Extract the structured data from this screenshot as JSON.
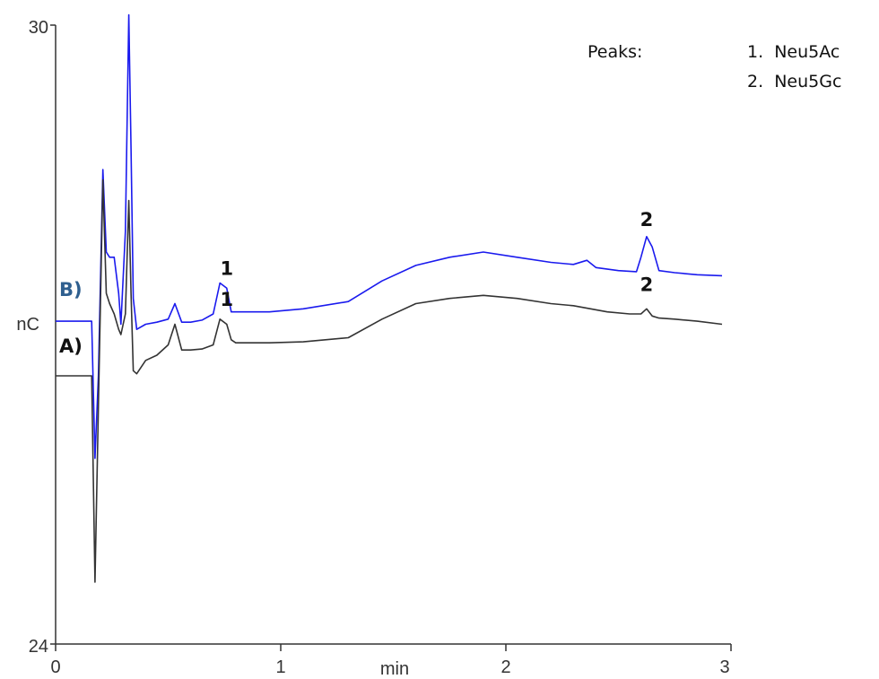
{
  "chart_data": {
    "type": "line",
    "xlabel": "min",
    "ylabel": "nC",
    "xlim": [
      0,
      3
    ],
    "ylim": [
      24,
      30
    ],
    "x_ticks": [
      "0",
      "1",
      "2",
      "3"
    ],
    "y_ticks": [
      "24",
      "30"
    ],
    "grid": false,
    "legend": {
      "title": "Peaks:",
      "entries": [
        "1.  Neu5Ac",
        "2.  Neu5Gc"
      ],
      "placement": "top-right"
    },
    "series": [
      {
        "name": "B)",
        "color": "#1a1aee",
        "label_color": "#2f5f8f",
        "x": [
          0.0,
          0.1,
          0.16,
          0.175,
          0.19,
          0.21,
          0.225,
          0.24,
          0.26,
          0.28,
          0.29,
          0.31,
          0.325,
          0.335,
          0.345,
          0.36,
          0.4,
          0.45,
          0.5,
          0.53,
          0.56,
          0.6,
          0.65,
          0.7,
          0.73,
          0.76,
          0.78,
          0.8,
          0.85,
          0.95,
          1.1,
          1.3,
          1.45,
          1.6,
          1.75,
          1.9,
          2.05,
          2.2,
          2.3,
          2.36,
          2.4,
          2.5,
          2.58,
          2.6,
          2.625,
          2.65,
          2.68,
          2.75,
          2.85,
          2.96
        ],
        "y": [
          27.13,
          27.13,
          27.13,
          25.8,
          26.6,
          28.6,
          27.8,
          27.75,
          27.75,
          27.4,
          27.1,
          28.0,
          30.1,
          28.8,
          27.35,
          27.05,
          27.1,
          27.12,
          27.15,
          27.3,
          27.12,
          27.12,
          27.14,
          27.2,
          27.5,
          27.45,
          27.22,
          27.22,
          27.22,
          27.22,
          27.25,
          27.32,
          27.52,
          27.67,
          27.75,
          27.8,
          27.75,
          27.7,
          27.68,
          27.72,
          27.65,
          27.62,
          27.61,
          27.75,
          27.95,
          27.85,
          27.62,
          27.6,
          27.58,
          27.57
        ]
      },
      {
        "name": "A)",
        "color": "#333333",
        "label_color": "#111111",
        "x": [
          0.0,
          0.1,
          0.16,
          0.175,
          0.19,
          0.21,
          0.225,
          0.24,
          0.26,
          0.28,
          0.29,
          0.31,
          0.325,
          0.335,
          0.345,
          0.36,
          0.4,
          0.45,
          0.5,
          0.53,
          0.56,
          0.6,
          0.65,
          0.7,
          0.73,
          0.76,
          0.78,
          0.8,
          0.85,
          0.95,
          1.1,
          1.3,
          1.45,
          1.6,
          1.75,
          1.9,
          2.05,
          2.2,
          2.3,
          2.45,
          2.55,
          2.6,
          2.625,
          2.65,
          2.68,
          2.75,
          2.85,
          2.96
        ],
        "y": [
          26.6,
          26.6,
          26.6,
          24.6,
          26.3,
          28.5,
          27.4,
          27.3,
          27.2,
          27.05,
          27.0,
          27.2,
          28.3,
          27.4,
          26.65,
          26.62,
          26.75,
          26.8,
          26.9,
          27.1,
          26.85,
          26.85,
          26.86,
          26.9,
          27.15,
          27.1,
          26.95,
          26.92,
          26.92,
          26.92,
          26.93,
          26.97,
          27.15,
          27.3,
          27.35,
          27.38,
          27.35,
          27.3,
          27.28,
          27.22,
          27.2,
          27.2,
          27.25,
          27.18,
          27.16,
          27.15,
          27.13,
          27.1
        ]
      }
    ],
    "annotations": [
      {
        "series": "B)",
        "text": "1",
        "x": 0.76,
        "y": 27.58
      },
      {
        "series": "A)",
        "text": "1",
        "x": 0.76,
        "y": 27.28
      },
      {
        "series": "B)",
        "text": "2",
        "x": 2.625,
        "y": 28.05
      },
      {
        "series": "A)",
        "text": "2",
        "x": 2.625,
        "y": 27.42
      }
    ]
  }
}
